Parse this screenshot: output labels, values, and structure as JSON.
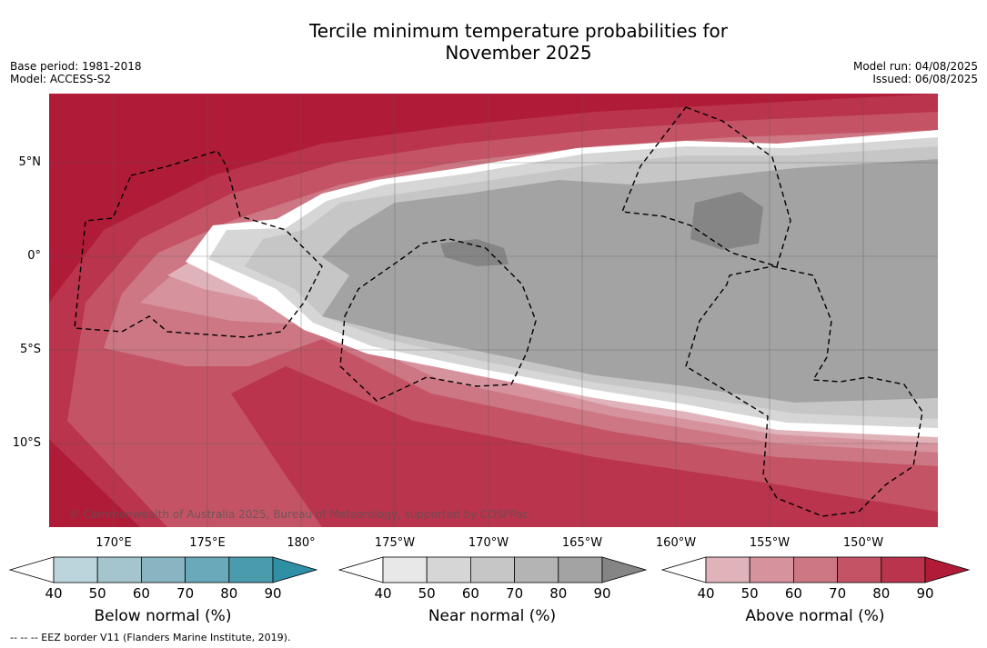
{
  "title_line1": "Tercile minimum temperature probabilities for",
  "title_line2": "November 2025",
  "base_period": "Base period: 1981-2018",
  "model": "Model: ACCESS-S2",
  "model_run": "Model run: 04/08/2025",
  "issued": "Issued: 06/08/2025",
  "copyright": "© Commonwealth of Australia 2025, Bureau of Meteorology, supported by COSPPac",
  "footnote": "--  --  -- EEZ border V11 (Flanders Marine Institute, 2019).",
  "lon_labels": [
    "170°E",
    "175°E",
    "180°",
    "175°W",
    "170°W",
    "165°W",
    "160°W",
    "155°W",
    "150°W"
  ],
  "lat_labels": [
    "5°N",
    "0°",
    "5°S",
    "10°S"
  ],
  "colorbars": [
    {
      "label": "Below normal (%)",
      "ticks": [
        "40",
        "50",
        "60",
        "70",
        "80",
        "90"
      ],
      "colors": [
        "#ffffff",
        "#bcd4dc",
        "#a4c5cd",
        "#89b5c2",
        "#6aa9b9",
        "#4a9cad",
        "#2f8fa5"
      ]
    },
    {
      "label": "Near normal (%)",
      "ticks": [
        "40",
        "50",
        "60",
        "70",
        "80",
        "90"
      ],
      "colors": [
        "#ffffff",
        "#e8e8e8",
        "#d6d6d6",
        "#c6c6c6",
        "#b4b4b4",
        "#a3a3a3",
        "#858585"
      ]
    },
    {
      "label": "Above normal (%)",
      "ticks": [
        "40",
        "50",
        "60",
        "70",
        "80",
        "90"
      ],
      "colors": [
        "#ffffff",
        "#e0b3ba",
        "#d6939e",
        "#cc7783",
        "#c45465",
        "#b9344c",
        "#b01c38"
      ]
    }
  ]
}
